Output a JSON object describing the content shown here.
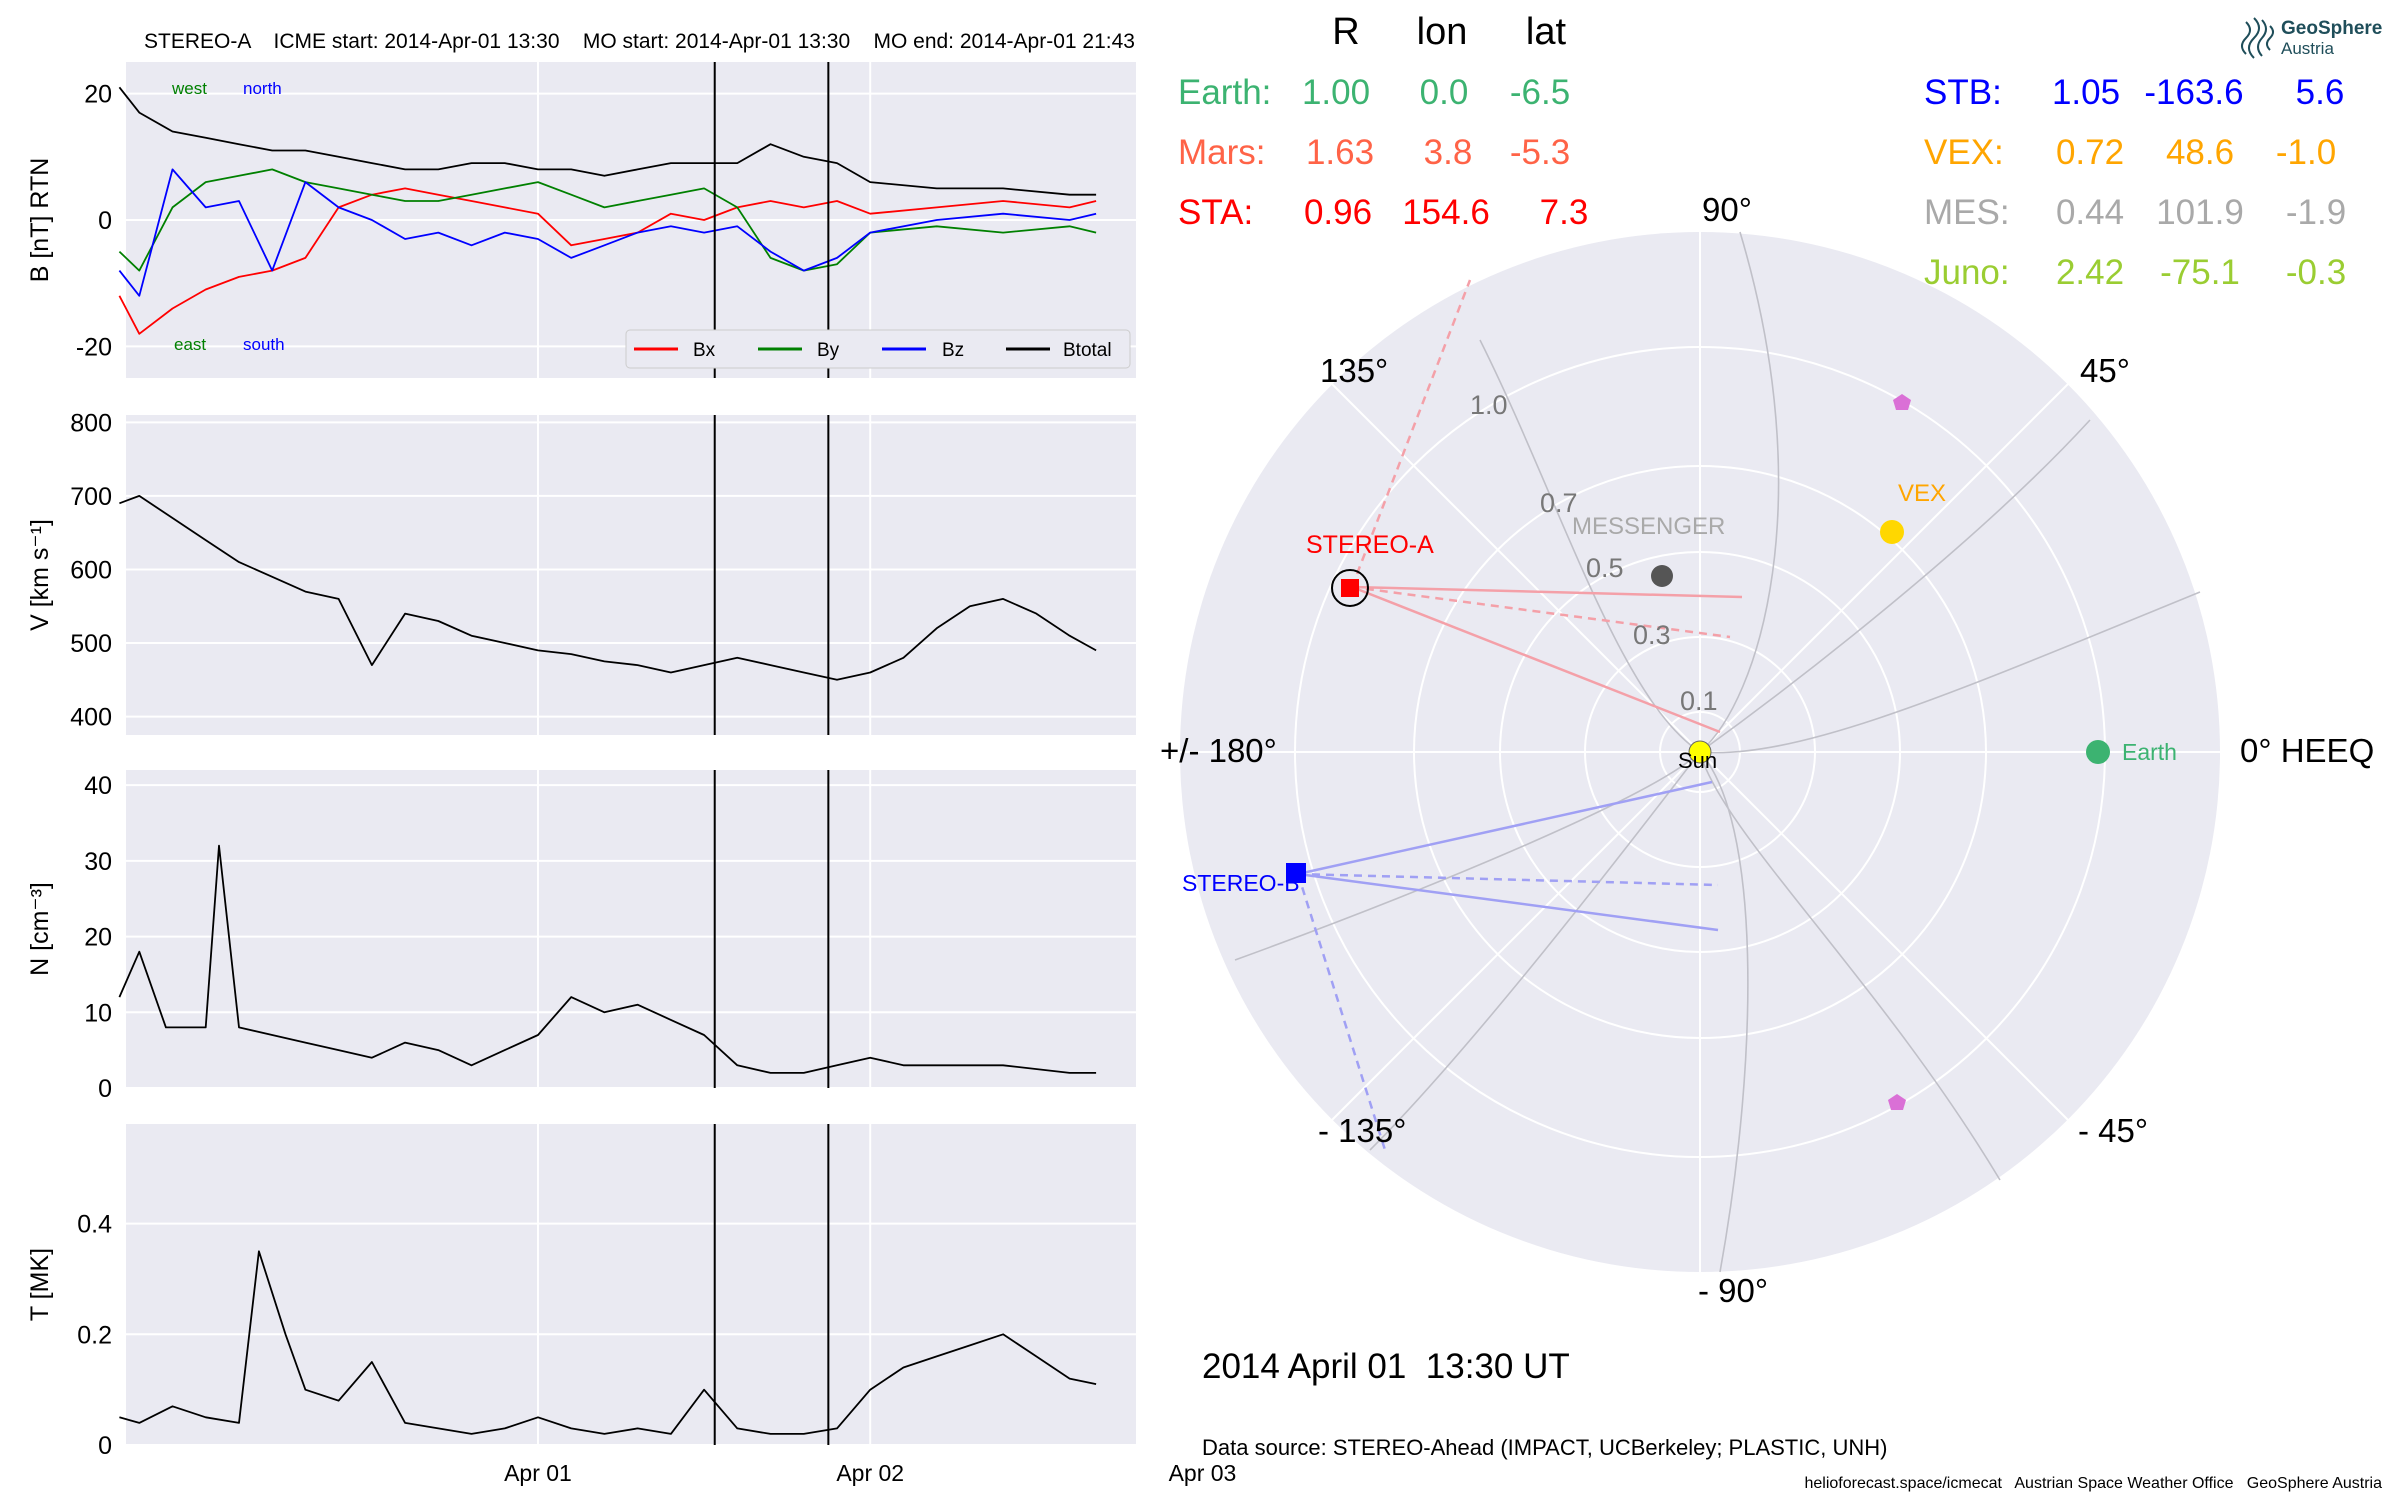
{
  "chart_data": [
    {
      "type": "line",
      "panel": "magnetic-field",
      "title": "STEREO-A    ICME start: 2014-Apr-01 13:30    MO start: 2014-Apr-01 13:30    MO end: 2014-Apr-01 21:43",
      "ylabel": "B [nT] RTN",
      "ylim": [
        -25,
        25
      ],
      "yticks": [
        20,
        0,
        -20
      ],
      "xlim": [
        -1.12,
        0.4
      ],
      "x_ticks": [
        {
          "x": -0.5,
          "label": "Apr 01"
        },
        {
          "x": 0.0,
          "label": "Apr 02"
        },
        {
          "x": 0.5,
          "label": "Apr 03"
        }
      ],
      "event_lines_x": [
        -0.234,
        -0.063
      ],
      "annotations": [
        {
          "text": "west",
          "color": "#008000"
        },
        {
          "text": "north",
          "color": "#0000ff"
        },
        {
          "text": "east",
          "color": "#008000"
        },
        {
          "text": "south",
          "color": "#0000ff"
        }
      ],
      "legend_placement": "lower-right",
      "grid": true,
      "series": [
        {
          "name": "Bx",
          "color": "#ff0000",
          "x": [
            -1.13,
            -1.1,
            -1.05,
            -1.0,
            -0.95,
            -0.9,
            -0.85,
            -0.8,
            -0.75,
            -0.7,
            -0.65,
            -0.6,
            -0.55,
            -0.5,
            -0.45,
            -0.4,
            -0.35,
            -0.3,
            -0.25,
            -0.2,
            -0.15,
            -0.1,
            -0.05,
            0.0,
            0.1,
            0.2,
            0.3,
            0.34
          ],
          "values": [
            -12,
            -18,
            -14,
            -11,
            -9,
            -8,
            -6,
            2,
            4,
            5,
            4,
            3,
            2,
            1,
            -4,
            -3,
            -2,
            1,
            0,
            2,
            3,
            2,
            3,
            1,
            2,
            3,
            2,
            3
          ]
        },
        {
          "name": "By",
          "color": "#008000",
          "x": [
            -1.13,
            -1.1,
            -1.05,
            -1.0,
            -0.95,
            -0.9,
            -0.85,
            -0.8,
            -0.75,
            -0.7,
            -0.65,
            -0.6,
            -0.55,
            -0.5,
            -0.45,
            -0.4,
            -0.35,
            -0.3,
            -0.25,
            -0.2,
            -0.15,
            -0.1,
            -0.05,
            0.0,
            0.1,
            0.2,
            0.3,
            0.34
          ],
          "values": [
            -5,
            -8,
            2,
            6,
            7,
            8,
            6,
            5,
            4,
            3,
            3,
            4,
            5,
            6,
            4,
            2,
            3,
            4,
            5,
            2,
            -6,
            -8,
            -7,
            -2,
            -1,
            -2,
            -1,
            -2
          ]
        },
        {
          "name": "Bz",
          "color": "#0000ff",
          "x": [
            -1.13,
            -1.1,
            -1.05,
            -1.0,
            -0.95,
            -0.9,
            -0.85,
            -0.8,
            -0.75,
            -0.7,
            -0.65,
            -0.6,
            -0.55,
            -0.5,
            -0.45,
            -0.4,
            -0.35,
            -0.3,
            -0.25,
            -0.2,
            -0.15,
            -0.1,
            -0.05,
            0.0,
            0.1,
            0.2,
            0.3,
            0.34
          ],
          "values": [
            -8,
            -12,
            8,
            2,
            3,
            -8,
            6,
            2,
            0,
            -3,
            -2,
            -4,
            -2,
            -3,
            -6,
            -4,
            -2,
            -1,
            -2,
            -1,
            -5,
            -8,
            -6,
            -2,
            0,
            1,
            0,
            1
          ]
        },
        {
          "name": "Btotal",
          "color": "#000000",
          "x": [
            -1.13,
            -1.1,
            -1.05,
            -1.0,
            -0.95,
            -0.9,
            -0.85,
            -0.8,
            -0.75,
            -0.7,
            -0.65,
            -0.6,
            -0.55,
            -0.5,
            -0.45,
            -0.4,
            -0.35,
            -0.3,
            -0.25,
            -0.2,
            -0.15,
            -0.1,
            -0.05,
            0.0,
            0.1,
            0.2,
            0.3,
            0.34
          ],
          "values": [
            21,
            17,
            14,
            13,
            12,
            11,
            11,
            10,
            9,
            8,
            8,
            9,
            9,
            8,
            8,
            7,
            8,
            9,
            9,
            9,
            12,
            10,
            9,
            6,
            5,
            5,
            4,
            4
          ]
        }
      ]
    },
    {
      "type": "line",
      "panel": "speed",
      "ylabel": "V [km s⁻¹]",
      "ylim": [
        375,
        810
      ],
      "yticks": [
        800,
        700,
        600,
        500,
        400
      ],
      "xlim": [
        -1.12,
        0.4
      ],
      "event_lines_x": [
        -0.234,
        -0.063
      ],
      "grid": true,
      "series": [
        {
          "name": "",
          "color": "#000000",
          "x": [
            -1.13,
            -1.1,
            -1.05,
            -1.0,
            -0.95,
            -0.9,
            -0.85,
            -0.8,
            -0.75,
            -0.7,
            -0.65,
            -0.6,
            -0.55,
            -0.5,
            -0.45,
            -0.4,
            -0.35,
            -0.3,
            -0.25,
            -0.2,
            -0.15,
            -0.1,
            -0.05,
            0.0,
            0.05,
            0.1,
            0.15,
            0.2,
            0.25,
            0.3,
            0.34
          ],
          "values": [
            690,
            700,
            670,
            640,
            610,
            590,
            570,
            560,
            470,
            540,
            530,
            510,
            500,
            490,
            485,
            475,
            470,
            460,
            470,
            480,
            470,
            460,
            450,
            460,
            480,
            520,
            550,
            560,
            540,
            510,
            490
          ]
        }
      ]
    },
    {
      "type": "line",
      "panel": "density",
      "ylabel": "N [cm⁻³]",
      "ylim": [
        0,
        42
      ],
      "yticks": [
        40,
        30,
        20,
        10,
        0
      ],
      "xlim": [
        -1.12,
        0.4
      ],
      "event_lines_x": [
        -0.234,
        -0.063
      ],
      "grid": true,
      "series": [
        {
          "name": "",
          "color": "#000000",
          "x": [
            -1.13,
            -1.1,
            -1.06,
            -1.0,
            -0.98,
            -0.95,
            -0.9,
            -0.85,
            -0.8,
            -0.75,
            -0.7,
            -0.65,
            -0.6,
            -0.55,
            -0.5,
            -0.45,
            -0.4,
            -0.35,
            -0.3,
            -0.25,
            -0.2,
            -0.15,
            -0.1,
            -0.05,
            0.0,
            0.05,
            0.1,
            0.2,
            0.3,
            0.34
          ],
          "values": [
            12,
            18,
            8,
            8,
            32,
            8,
            7,
            6,
            5,
            4,
            6,
            5,
            3,
            5,
            7,
            12,
            10,
            11,
            9,
            7,
            3,
            2,
            2,
            3,
            4,
            3,
            3,
            3,
            2,
            2
          ]
        }
      ]
    },
    {
      "type": "line",
      "panel": "temperature",
      "ylabel": "T [MK]",
      "ylim": [
        0,
        0.58
      ],
      "yticks": [
        0.4,
        0.2,
        0.0
      ],
      "xlim": [
        -1.12,
        0.4
      ],
      "event_lines_x": [
        -0.234,
        -0.063
      ],
      "grid": true,
      "series": [
        {
          "name": "",
          "color": "#000000",
          "x": [
            -1.13,
            -1.1,
            -1.05,
            -1.0,
            -0.95,
            -0.92,
            -0.88,
            -0.85,
            -0.8,
            -0.75,
            -0.7,
            -0.65,
            -0.6,
            -0.55,
            -0.5,
            -0.45,
            -0.4,
            -0.35,
            -0.3,
            -0.25,
            -0.2,
            -0.15,
            -0.1,
            -0.05,
            0.0,
            0.05,
            0.1,
            0.15,
            0.2,
            0.25,
            0.3,
            0.34
          ],
          "values": [
            0.05,
            0.04,
            0.07,
            0.05,
            0.04,
            0.35,
            0.2,
            0.1,
            0.08,
            0.15,
            0.04,
            0.03,
            0.02,
            0.03,
            0.05,
            0.03,
            0.02,
            0.03,
            0.02,
            0.1,
            0.03,
            0.02,
            0.02,
            0.03,
            0.1,
            0.14,
            0.16,
            0.18,
            0.2,
            0.16,
            0.12,
            0.11
          ]
        }
      ]
    },
    {
      "type": "scatter",
      "panel": "polar-position",
      "coordinate_system": "HEEQ polar (longitude, radial distance)",
      "angle_labels": {
        "a0": "0° HEEQ",
        "a45": "45°",
        "a90": "90°",
        "a135": "135°",
        "a180": "+/- 180°",
        "am135": "- 135°",
        "am90": "- 90°",
        "am45": "- 45°"
      },
      "r_tick_labels": [
        "0.1",
        "0.3",
        "0.5",
        "0.7",
        "1.0"
      ],
      "bodies": [
        {
          "name": "Sun",
          "label": "Sun",
          "r": 0.0,
          "lon": 0.0,
          "color": "#ffff00",
          "marker": "circle"
        },
        {
          "name": "Earth",
          "label": "Earth",
          "r": 1.0,
          "lon": 0.0,
          "color": "#3cb371",
          "marker": "circle"
        },
        {
          "name": "STEREO-A",
          "label": "STEREO-A",
          "r": 0.96,
          "lon": 154.6,
          "color": "#ff0000",
          "marker": "square"
        },
        {
          "name": "STEREO-B",
          "label": "STEREO-B",
          "r": 1.05,
          "lon": -163.6,
          "color": "#0000ff",
          "marker": "square"
        },
        {
          "name": "VEX",
          "label": "VEX",
          "r": 0.72,
          "lon": 48.6,
          "color": "#ffd700",
          "marker": "circle"
        },
        {
          "name": "MESSENGER",
          "label": "MESSENGER",
          "r": 0.44,
          "lon": 101.9,
          "color": "#555555",
          "marker": "circle"
        }
      ]
    }
  ],
  "position_table": {
    "headers": [
      "R",
      "lon",
      "lat"
    ],
    "left_rows": [
      {
        "name": "Earth:",
        "r": "1.00",
        "lon": "0.0",
        "lat": "-6.5",
        "color": "#3cb371"
      },
      {
        "name": "Mars:",
        "r": "1.63",
        "lon": "3.8",
        "lat": "-5.3",
        "color": "#ff6347"
      },
      {
        "name": "STA:",
        "r": "0.96",
        "lon": "154.6",
        "lat": "7.3",
        "color": "#ff0000"
      }
    ],
    "right_rows": [
      {
        "name": "STB:",
        "r": "1.05",
        "lon": "-163.6",
        "lat": "5.6",
        "color": "#0000ff"
      },
      {
        "name": "VEX:",
        "r": "0.72",
        "lon": "48.6",
        "lat": "-1.0",
        "color": "#ffa500"
      },
      {
        "name": "MES:",
        "r": "0.44",
        "lon": "101.9",
        "lat": "-1.9",
        "color": "#a9a9a9"
      },
      {
        "name": "Juno:",
        "r": "2.42",
        "lon": "-75.1",
        "lat": "-0.3",
        "color": "#9acd32"
      }
    ]
  },
  "date_label": "2014 April 01  13:30 UT",
  "data_source": "Data source: STEREO-Ahead (IMPACT, UCBerkeley; PLASTIC, UNH)",
  "footer": "helioforecast.space/icmecat   Austrian Space Weather Office   GeoSphere Austria",
  "logo": {
    "line1": "GeoSphere",
    "line2": "Austria",
    "color": "#1f4e5a"
  },
  "colors": {
    "panel_bg": "#eaeaf2",
    "grid": "#ffffff"
  }
}
